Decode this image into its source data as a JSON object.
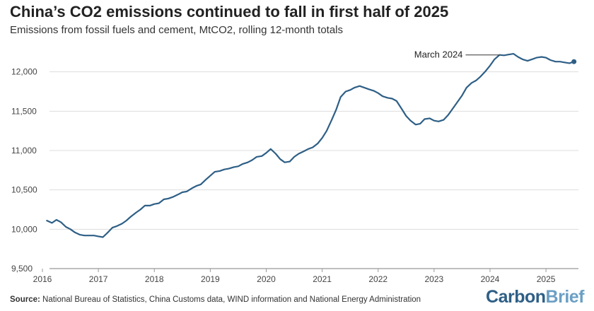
{
  "header": {
    "title": "China’s CO2 emissions continued to fall in first half of 2025",
    "subtitle": "Emissions from fossil fuels and cement, MtCO2, rolling 12-month totals"
  },
  "footer": {
    "source_label": "Source:",
    "source_text": "National Bureau of Statistics, China Customs data, WIND information and National Energy Administration",
    "brand_part1": "Carbon",
    "brand_part2": "Brief"
  },
  "colors": {
    "line": "#2e5f86",
    "grid": "#dddddd",
    "axis": "#999999"
  },
  "chart_data": {
    "type": "line",
    "title": "China’s CO2 emissions continued to fall in first half of 2025",
    "ylabel": "MtCO2",
    "xlabel": "",
    "xlim": [
      2016,
      2025.58
    ],
    "ylim": [
      9500,
      12500
    ],
    "yticks": [
      9500,
      10000,
      10500,
      11000,
      11500,
      12000
    ],
    "ytick_labels": [
      "9,500",
      "10,000",
      "10,500",
      "11,000",
      "11,500",
      "12,000"
    ],
    "xticks": [
      2016,
      2017,
      2018,
      2019,
      2020,
      2021,
      2022,
      2023,
      2024,
      2025
    ],
    "xtick_labels": [
      "2016",
      "2017",
      "2018",
      "2019",
      "2020",
      "2021",
      "2022",
      "2023",
      "2024",
      "2025"
    ],
    "annotation": {
      "label": "March 2024",
      "x": 2024.17,
      "y": 12215
    },
    "end_marker": {
      "x": 2025.5,
      "y": 12130
    },
    "series": [
      {
        "name": "Rolling 12-month CO2 emissions",
        "x": [
          2016.08,
          2016.17,
          2016.25,
          2016.33,
          2016.42,
          2016.5,
          2016.58,
          2016.67,
          2016.75,
          2016.83,
          2016.92,
          2017.0,
          2017.08,
          2017.17,
          2017.25,
          2017.33,
          2017.42,
          2017.5,
          2017.58,
          2017.67,
          2017.75,
          2017.83,
          2017.92,
          2018.0,
          2018.08,
          2018.17,
          2018.25,
          2018.33,
          2018.42,
          2018.5,
          2018.58,
          2018.67,
          2018.75,
          2018.83,
          2018.92,
          2019.0,
          2019.08,
          2019.17,
          2019.25,
          2019.33,
          2019.42,
          2019.5,
          2019.58,
          2019.67,
          2019.75,
          2019.83,
          2019.92,
          2020.0,
          2020.08,
          2020.17,
          2020.25,
          2020.33,
          2020.42,
          2020.5,
          2020.58,
          2020.67,
          2020.75,
          2020.83,
          2020.92,
          2021.0,
          2021.08,
          2021.17,
          2021.25,
          2021.33,
          2021.42,
          2021.5,
          2021.58,
          2021.67,
          2021.75,
          2021.83,
          2021.92,
          2022.0,
          2022.08,
          2022.17,
          2022.25,
          2022.33,
          2022.42,
          2022.5,
          2022.58,
          2022.67,
          2022.75,
          2022.83,
          2022.92,
          2023.0,
          2023.08,
          2023.17,
          2023.25,
          2023.33,
          2023.42,
          2023.5,
          2023.58,
          2023.67,
          2023.75,
          2023.83,
          2023.92,
          2024.0,
          2024.08,
          2024.17,
          2024.25,
          2024.33,
          2024.42,
          2024.5,
          2024.58,
          2024.67,
          2024.75,
          2024.83,
          2024.92,
          2025.0,
          2025.08,
          2025.17,
          2025.25,
          2025.33,
          2025.42,
          2025.5
        ],
        "values": [
          10110,
          10080,
          10120,
          10090,
          10030,
          10000,
          9960,
          9930,
          9920,
          9920,
          9920,
          9910,
          9900,
          9960,
          10020,
          10040,
          10070,
          10110,
          10160,
          10210,
          10250,
          10300,
          10300,
          10320,
          10330,
          10380,
          10390,
          10410,
          10440,
          10470,
          10480,
          10520,
          10550,
          10570,
          10630,
          10680,
          10730,
          10740,
          10760,
          10770,
          10790,
          10800,
          10830,
          10850,
          10880,
          10920,
          10930,
          10970,
          11020,
          10960,
          10890,
          10850,
          10860,
          10920,
          10960,
          10990,
          11020,
          11040,
          11090,
          11160,
          11250,
          11390,
          11520,
          11680,
          11750,
          11770,
          11800,
          11820,
          11800,
          11780,
          11760,
          11730,
          11690,
          11670,
          11660,
          11630,
          11530,
          11440,
          11380,
          11330,
          11340,
          11400,
          11410,
          11380,
          11370,
          11390,
          11450,
          11530,
          11620,
          11700,
          11800,
          11860,
          11890,
          11940,
          12010,
          12080,
          12160,
          12215,
          12210,
          12220,
          12230,
          12190,
          12160,
          12140,
          12160,
          12180,
          12190,
          12180,
          12150,
          12130,
          12130,
          12120,
          12110,
          12130
        ]
      }
    ]
  }
}
